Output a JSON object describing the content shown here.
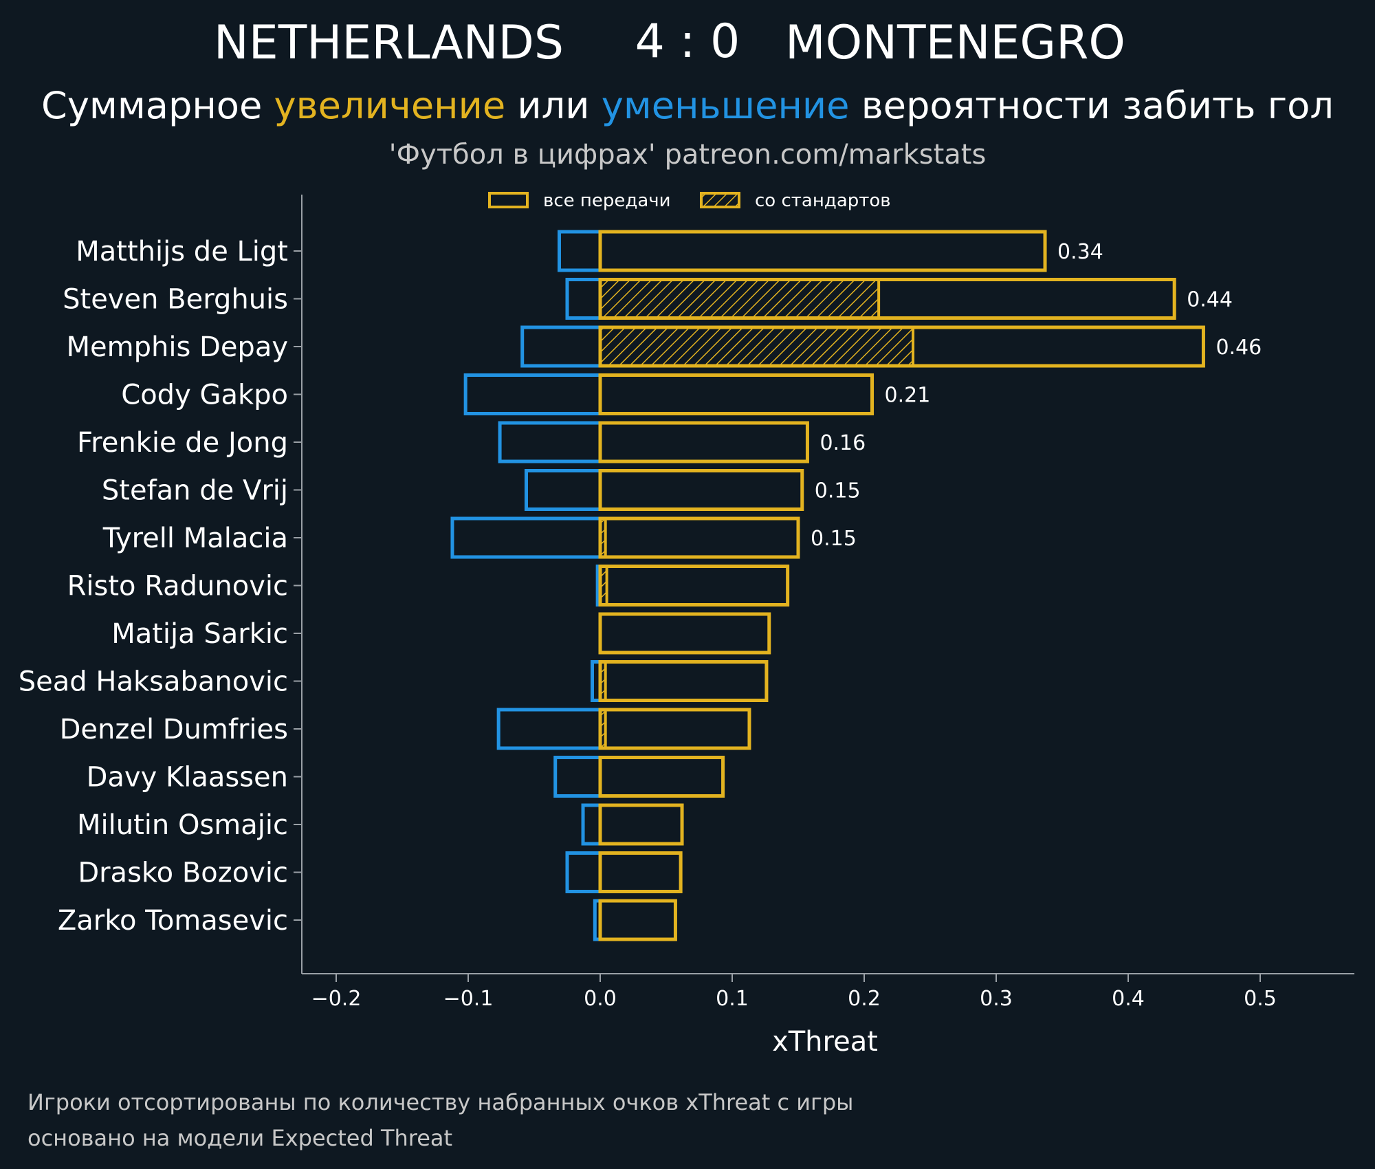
{
  "header": {
    "home_team": "NETHERLANDS",
    "score": "4 : 0",
    "away_team": "MONTENEGRO",
    "subtitle_part1": "Суммарное ",
    "subtitle_increase": "увеличение",
    "subtitle_part2": " или ",
    "subtitle_decrease": "уменьшение",
    "subtitle_part3": " вероятности забить гол",
    "credit": "'Футбол в цифрах' patreon.com/markstats"
  },
  "legend": {
    "all_passes": "все передачи",
    "set_pieces": "со стандартов",
    "placement": "top-center"
  },
  "footer": {
    "line1": "Игроки отсортированы по количеству набранных очков xThreat с игры",
    "line2": "основано на модели Expected Threat"
  },
  "colors": {
    "background": "#0e1821",
    "increase": "#e3b320",
    "decrease": "#2293e3",
    "axis": "#9aa0a6",
    "credit": "#c8c8c8"
  },
  "chart_data": {
    "type": "bar",
    "orientation": "horizontal",
    "xlabel": "xThreat",
    "xlim": [
      -0.225,
      0.575
    ],
    "xticks": [
      -0.2,
      -0.1,
      0.0,
      0.1,
      0.2,
      0.3,
      0.4,
      0.5
    ],
    "xtick_labels": [
      "−0.2",
      "−0.1",
      "0.0",
      "0.1",
      "0.2",
      "0.3",
      "0.4",
      "0.5"
    ],
    "grid": false,
    "categories": [
      "Matthijs de Ligt",
      "Steven Berghuis",
      "Memphis Depay",
      "Cody Gakpo",
      "Frenkie de Jong",
      "Stefan de Vrij",
      "Tyrell Malacia",
      "Risto Radunovic",
      "Matija Sarkic",
      "Sead Haksabanovic",
      "Denzel Dumfries",
      "Davy Klaassen",
      "Milutin Osmajic",
      "Drasko Bozovic",
      "Zarko Tomasevic"
    ],
    "series": [
      {
        "key": "increase_all",
        "values": [
          0.337,
          0.435,
          0.457,
          0.206,
          0.157,
          0.153,
          0.15,
          0.142,
          0.128,
          0.126,
          0.113,
          0.093,
          0.062,
          0.061,
          0.057
        ]
      },
      {
        "key": "increase_set_pieces",
        "values": [
          0,
          0.211,
          0.237,
          0,
          0,
          0,
          0.004,
          0.005,
          0,
          0.004,
          0.004,
          0,
          0,
          0,
          0
        ]
      },
      {
        "key": "decrease",
        "values": [
          -0.031,
          -0.025,
          -0.059,
          -0.102,
          -0.076,
          -0.056,
          -0.112,
          -0.002,
          0,
          -0.006,
          -0.077,
          -0.034,
          -0.013,
          -0.025,
          -0.004
        ]
      }
    ],
    "value_labels": [
      "0.34",
      "0.44",
      "0.46",
      "0.21",
      "0.16",
      "0.15",
      "0.15",
      "",
      "",
      "",
      "",
      "",
      "",
      "",
      ""
    ]
  }
}
